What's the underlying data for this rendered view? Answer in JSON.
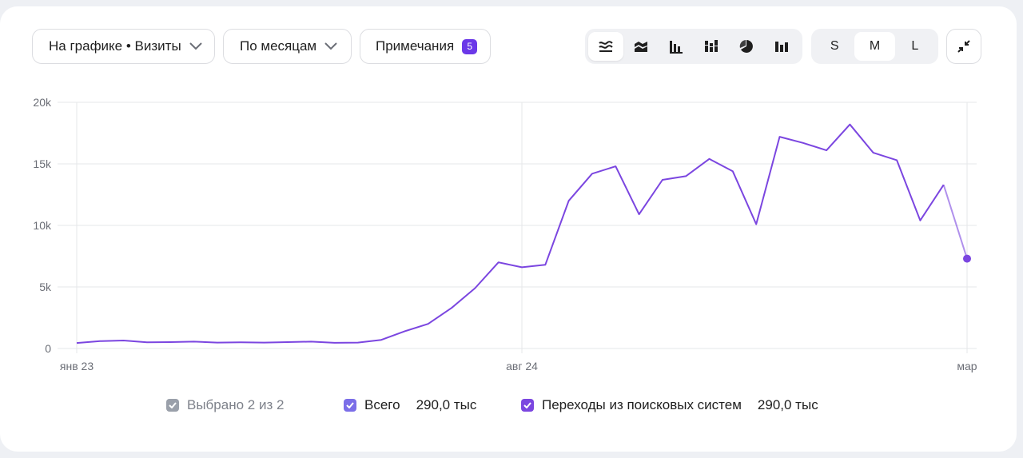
{
  "toolbar": {
    "metric_dropdown": "На графике • Визиты",
    "period_dropdown": "По месяцам",
    "notes_label": "Примечания",
    "notes_count": "5",
    "chart_types": [
      "line-chart-icon",
      "area-chart-icon",
      "bar-chart-icon",
      "stacked-bar-icon",
      "pie-chart-icon",
      "column-chart-icon"
    ],
    "sizes": [
      "S",
      "M",
      "L"
    ],
    "active_size": "M"
  },
  "colors": {
    "line": "#7b46e0",
    "active_check": "#7b46e0",
    "inactive_check": "#9aa0aa"
  },
  "legend": {
    "selected_label": "Выбрано 2 из 2",
    "items": [
      {
        "name": "Всего",
        "value": "290,0 тыс"
      },
      {
        "name": "Переходы из поисковых систем",
        "value": "290,0 тыс"
      }
    ]
  },
  "chart_data": {
    "type": "line",
    "x_tick_labels": [
      "янв 23",
      "авг 24",
      "мар"
    ],
    "y_tick_labels": [
      "0",
      "5k",
      "10k",
      "15k",
      "20k"
    ],
    "ylim": [
      0,
      20000
    ],
    "y_ticks": [
      0,
      5000,
      10000,
      15000,
      20000
    ],
    "grid": true,
    "series": [
      {
        "values": [
          450,
          600,
          650,
          500,
          520,
          560,
          480,
          500,
          480,
          520,
          560,
          460,
          480,
          700,
          1400,
          2000,
          3300,
          4900,
          7000,
          6600,
          6800,
          12000,
          14200,
          14800,
          10900,
          13700,
          14000,
          15400,
          14400,
          10100,
          17200,
          16700,
          16100,
          18200,
          15900,
          15300,
          10400,
          13300,
          7300
        ]
      }
    ]
  }
}
